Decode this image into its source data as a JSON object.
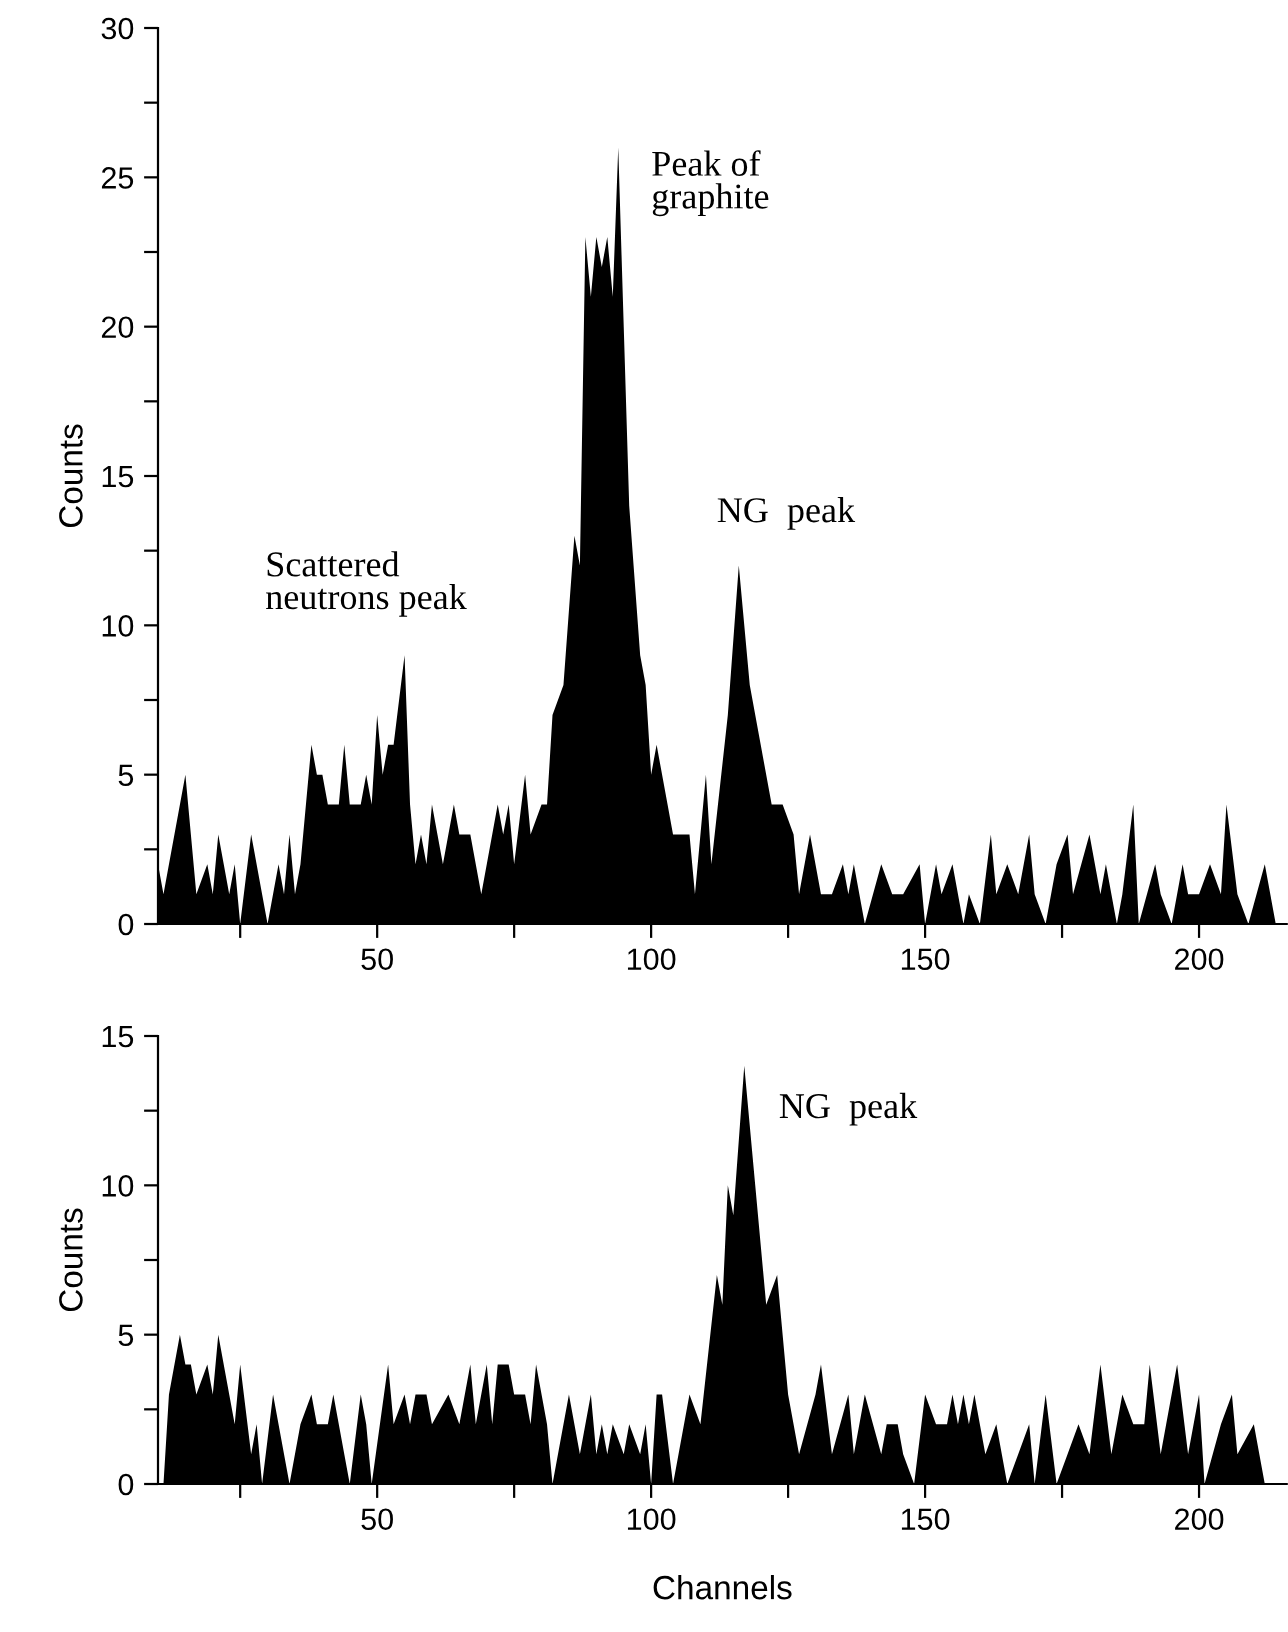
{
  "chart_data": [
    {
      "type": "area",
      "ylabel": "Counts",
      "xlim": [
        10,
        216
      ],
      "ylim": [
        0,
        30
      ],
      "xticks": [
        {
          "value": 25,
          "label": null
        },
        50,
        {
          "value": 75,
          "label": null
        },
        100,
        {
          "value": 125,
          "label": null
        },
        150,
        {
          "value": 175,
          "label": null
        },
        200
      ],
      "yticks": [
        0,
        {
          "value": 2.5,
          "label": null
        },
        5,
        {
          "value": 7.5,
          "label": null
        },
        10,
        {
          "value": 12.5,
          "label": null
        },
        15,
        {
          "value": 17.5,
          "label": null
        },
        20,
        {
          "value": 22.5,
          "label": null
        },
        25,
        {
          "value": 27.5,
          "label": null
        },
        30
      ],
      "grid": false,
      "legend": false,
      "annotations": [
        "Scattered\nneutrons peak",
        "Peak of\ngraphite",
        "NG  peak"
      ],
      "series": [
        {
          "color": "#000000",
          "x": [
            10,
            11,
            12,
            15,
            17,
            19,
            20,
            21,
            22,
            23,
            24,
            25,
            27,
            29,
            30,
            32,
            33,
            34,
            35,
            36,
            38,
            39,
            40,
            41,
            43,
            44,
            45,
            47,
            48,
            49,
            50,
            51,
            52,
            53,
            55,
            56,
            57,
            58,
            59,
            60,
            61,
            62,
            64,
            65,
            66,
            67,
            69,
            72,
            73,
            74,
            75,
            77,
            78,
            80,
            81,
            82,
            84,
            86,
            87,
            88,
            89,
            90,
            91,
            92,
            93,
            94,
            95,
            96,
            98,
            99,
            100,
            101,
            103,
            104,
            106,
            107,
            108,
            110,
            111,
            114,
            116,
            118,
            120,
            122,
            124,
            126,
            127,
            129,
            131,
            133,
            135,
            136,
            137,
            139,
            142,
            144,
            146,
            149,
            150,
            152,
            153,
            155,
            157,
            158,
            160,
            162,
            163,
            165,
            167,
            169,
            170,
            172,
            174,
            176,
            177,
            180,
            182,
            183,
            185,
            186,
            188,
            189,
            192,
            193,
            195,
            197,
            198,
            200,
            202,
            204,
            205,
            207,
            209,
            212,
            214
          ],
          "values": [
            2,
            1,
            2,
            5,
            1,
            2,
            1,
            3,
            2,
            1,
            2,
            0,
            3,
            1,
            0,
            2,
            1,
            3,
            1,
            2,
            6,
            5,
            5,
            4,
            4,
            6,
            4,
            4,
            5,
            4,
            7,
            5,
            6,
            6,
            9,
            4,
            2,
            3,
            2,
            4,
            3,
            2,
            4,
            3,
            3,
            3,
            1,
            4,
            3,
            4,
            2,
            5,
            3,
            4,
            4,
            7,
            8,
            13,
            12,
            23,
            21,
            23,
            22,
            23,
            21,
            26,
            20,
            14,
            9,
            8,
            5,
            6,
            4,
            3,
            3,
            3,
            1,
            5,
            2,
            7,
            12,
            8,
            6,
            4,
            4,
            3,
            1,
            3,
            1,
            1,
            2,
            1,
            2,
            0,
            2,
            1,
            1,
            2,
            0,
            2,
            1,
            2,
            0,
            1,
            0,
            3,
            1,
            2,
            1,
            3,
            1,
            0,
            2,
            3,
            1,
            3,
            1,
            2,
            0,
            1,
            4,
            0,
            2,
            1,
            0,
            2,
            1,
            1,
            2,
            1,
            4,
            1,
            0,
            2,
            0
          ]
        }
      ]
    },
    {
      "type": "area",
      "ylabel": "Counts",
      "xlabel": "Channels",
      "xlim": [
        10,
        216
      ],
      "ylim": [
        0,
        15
      ],
      "xticks": [
        {
          "value": 25,
          "label": null
        },
        50,
        {
          "value": 75,
          "label": null
        },
        100,
        {
          "value": 125,
          "label": null
        },
        150,
        {
          "value": 175,
          "label": null
        },
        200
      ],
      "yticks": [
        0,
        {
          "value": 2.5,
          "label": null
        },
        5,
        {
          "value": 7.5,
          "label": null
        },
        10,
        {
          "value": 12.5,
          "label": null
        },
        15
      ],
      "grid": false,
      "legend": false,
      "annotations": [
        "NG  peak"
      ],
      "series": [
        {
          "color": "#000000",
          "x": [
            11,
            12,
            14,
            15,
            16,
            17,
            19,
            20,
            21,
            23,
            24,
            25,
            27,
            28,
            29,
            31,
            34,
            36,
            38,
            39,
            41,
            42,
            44,
            45,
            47,
            48,
            49,
            52,
            53,
            55,
            56,
            57,
            59,
            60,
            63,
            65,
            67,
            68,
            70,
            71,
            72,
            74,
            75,
            77,
            78,
            79,
            81,
            82,
            85,
            87,
            89,
            90,
            91,
            92,
            93,
            95,
            96,
            98,
            99,
            100,
            101,
            102,
            104,
            105,
            107,
            109,
            112,
            113,
            114,
            115,
            117,
            119,
            121,
            123,
            125,
            127,
            130,
            131,
            133,
            136,
            137,
            139,
            142,
            143,
            145,
            146,
            148,
            150,
            152,
            154,
            155,
            156,
            157,
            158,
            159,
            161,
            163,
            165,
            169,
            170,
            172,
            174,
            176,
            178,
            180,
            182,
            184,
            186,
            188,
            190,
            191,
            193,
            194,
            196,
            198,
            200,
            201,
            204,
            206,
            207,
            210,
            212,
            213
          ],
          "values": [
            0,
            3,
            5,
            4,
            4,
            3,
            4,
            3,
            5,
            3,
            2,
            4,
            1,
            2,
            0,
            3,
            0,
            2,
            3,
            2,
            2,
            3,
            1,
            0,
            3,
            2,
            0,
            4,
            2,
            3,
            2,
            3,
            3,
            2,
            3,
            2,
            4,
            2,
            4,
            2,
            4,
            4,
            3,
            3,
            2,
            4,
            2,
            0,
            3,
            1,
            3,
            1,
            2,
            1,
            2,
            1,
            2,
            1,
            2,
            0,
            3,
            3,
            0,
            1,
            3,
            2,
            7,
            6,
            10,
            9,
            14,
            10,
            6,
            7,
            3,
            1,
            3,
            4,
            1,
            3,
            1,
            3,
            1,
            2,
            2,
            1,
            0,
            3,
            2,
            2,
            3,
            2,
            3,
            2,
            3,
            1,
            2,
            0,
            2,
            0,
            3,
            0,
            1,
            2,
            1,
            4,
            1,
            3,
            2,
            2,
            4,
            1,
            2,
            4,
            1,
            3,
            0,
            2,
            3,
            1,
            2,
            0,
            0
          ]
        }
      ]
    }
  ]
}
